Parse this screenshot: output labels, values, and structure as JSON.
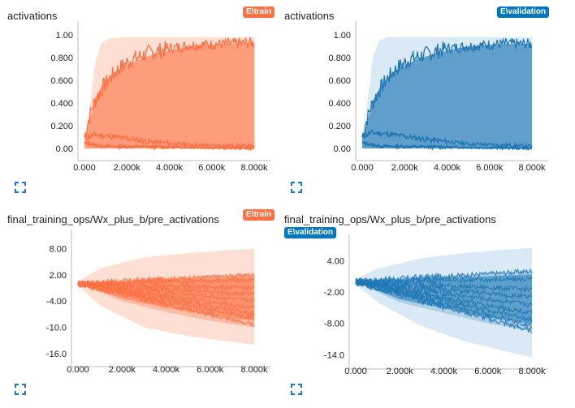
{
  "colors": {
    "train": "#ff7043",
    "validation": "#1f77b4",
    "train_light": "#ffd7c8",
    "validation_light": "#cfe4f3",
    "validation_mid": "#a9cde6",
    "train_mid": "#ffb89f",
    "axis": "#bdbdbd"
  },
  "icons": {
    "expand": "fullscreen-expand-icon"
  },
  "charts": [
    {
      "title": "activations",
      "run": "E\\train",
      "chart_data": {
        "type": "area",
        "run": "E\\train",
        "x_ticks": [
          "0.000",
          "2.000k",
          "4.000k",
          "6.000k",
          "8.000k"
        ],
        "y_ticks": [
          "1.00",
          "0.800",
          "0.600",
          "0.400",
          "0.200",
          "0.00"
        ],
        "xlim": [
          0,
          8000
        ],
        "ylim": [
          -0.05,
          1.05
        ],
        "envelope_max": [
          [
            0,
            0.12
          ],
          [
            250,
            0.35
          ],
          [
            500,
            0.75
          ],
          [
            800,
            0.93
          ],
          [
            1200,
            0.97
          ],
          [
            2000,
            0.98
          ],
          [
            4000,
            0.98
          ],
          [
            8000,
            0.98
          ]
        ],
        "envelope_min": [
          [
            0,
            0.0
          ],
          [
            8000,
            0.0
          ]
        ],
        "band_upper": [
          [
            0,
            0.1
          ],
          [
            200,
            0.2
          ],
          [
            500,
            0.45
          ],
          [
            900,
            0.58
          ],
          [
            1500,
            0.68
          ],
          [
            2500,
            0.78
          ],
          [
            3500,
            0.84
          ],
          [
            5000,
            0.9
          ],
          [
            6500,
            0.92
          ],
          [
            8000,
            0.93
          ]
        ],
        "series_upper": [
          [
            0,
            0.1
          ],
          [
            200,
            0.25
          ],
          [
            400,
            0.38
          ],
          [
            600,
            0.45
          ],
          [
            900,
            0.55
          ],
          [
            1200,
            0.62
          ],
          [
            1600,
            0.7
          ],
          [
            2200,
            0.78
          ],
          [
            3000,
            0.84
          ],
          [
            4000,
            0.88
          ],
          [
            5000,
            0.91
          ],
          [
            6500,
            0.92
          ],
          [
            8000,
            0.93
          ]
        ],
        "series_lower": [
          [
            0,
            0.09
          ],
          [
            500,
            0.12
          ],
          [
            1500,
            0.1
          ],
          [
            3000,
            0.06
          ],
          [
            5000,
            0.03
          ],
          [
            8000,
            0.02
          ]
        ],
        "series_bottom": [
          [
            0,
            0.05
          ],
          [
            800,
            0.02
          ],
          [
            8000,
            0.0
          ]
        ]
      }
    },
    {
      "title": "activations",
      "run": "E\\validation",
      "chart_data": {
        "type": "area",
        "run": "E\\validation",
        "x_ticks": [
          "0.000",
          "2.000k",
          "4.000k",
          "6.000k",
          "8.000k"
        ],
        "y_ticks": [
          "1.00",
          "0.800",
          "0.600",
          "0.400",
          "0.200",
          "0.00"
        ],
        "xlim": [
          0,
          8000
        ],
        "ylim": [
          -0.05,
          1.05
        ],
        "envelope_max": [
          [
            0,
            0.12
          ],
          [
            250,
            0.4
          ],
          [
            500,
            0.8
          ],
          [
            800,
            0.95
          ],
          [
            1200,
            0.98
          ],
          [
            8000,
            0.98
          ]
        ],
        "envelope_min": [
          [
            0,
            0.0
          ],
          [
            8000,
            0.0
          ]
        ],
        "band_upper": [
          [
            0,
            0.1
          ],
          [
            200,
            0.2
          ],
          [
            500,
            0.42
          ],
          [
            900,
            0.56
          ],
          [
            1500,
            0.68
          ],
          [
            2500,
            0.78
          ],
          [
            3500,
            0.84
          ],
          [
            5000,
            0.9
          ],
          [
            6500,
            0.92
          ],
          [
            8000,
            0.92
          ]
        ],
        "series_upper": [
          [
            0,
            0.1
          ],
          [
            200,
            0.24
          ],
          [
            400,
            0.36
          ],
          [
            600,
            0.44
          ],
          [
            900,
            0.54
          ],
          [
            1200,
            0.62
          ],
          [
            1600,
            0.7
          ],
          [
            2200,
            0.78
          ],
          [
            3000,
            0.83
          ],
          [
            4000,
            0.88
          ],
          [
            5000,
            0.9
          ],
          [
            6500,
            0.92
          ],
          [
            8000,
            0.92
          ]
        ],
        "series_lower": [
          [
            0,
            0.1
          ],
          [
            400,
            0.14
          ],
          [
            1500,
            0.12
          ],
          [
            3000,
            0.08
          ],
          [
            5000,
            0.04
          ],
          [
            8000,
            0.02
          ]
        ],
        "series_bottom": [
          [
            0,
            0.05
          ],
          [
            800,
            0.02
          ],
          [
            8000,
            0.0
          ]
        ]
      }
    },
    {
      "title": "final_training_ops/Wx_plus_b/pre_activations",
      "run": "E\\train",
      "chart_data": {
        "type": "area",
        "run": "E\\train",
        "x_ticks": [
          "0.000",
          "2.000k",
          "4.000k",
          "6.000k",
          "8.000k"
        ],
        "y_ticks": [
          "8.00",
          "2.00",
          "-4.00",
          "-10.0",
          "-16.0"
        ],
        "xlim": [
          0,
          8000
        ],
        "ylim": [
          -17.5,
          10.5
        ],
        "envelope_max": [
          [
            0,
            0.5
          ],
          [
            1000,
            3.5
          ],
          [
            3000,
            6.0
          ],
          [
            5000,
            7.0
          ],
          [
            8000,
            8.0
          ]
        ],
        "envelope_min": [
          [
            0,
            -0.5
          ],
          [
            1000,
            -5.0
          ],
          [
            3000,
            -10.0
          ],
          [
            5000,
            -12.0
          ],
          [
            8000,
            -14.0
          ]
        ],
        "band_upper": [
          [
            0,
            0
          ],
          [
            2000,
            0.8
          ],
          [
            4000,
            1.5
          ],
          [
            6000,
            1.8
          ],
          [
            8000,
            2.2
          ]
        ],
        "band_lower": [
          [
            0,
            0
          ],
          [
            2000,
            -4.0
          ],
          [
            4000,
            -6.5
          ],
          [
            6000,
            -8.5
          ],
          [
            8000,
            -10.0
          ]
        ],
        "lines": [
          [
            [
              0,
              0
            ],
            [
              8000,
              2.0
            ]
          ],
          [
            [
              0,
              0
            ],
            [
              8000,
              0.8
            ]
          ],
          [
            [
              0,
              0
            ],
            [
              8000,
              -1.0
            ]
          ],
          [
            [
              0,
              0
            ],
            [
              8000,
              -2.5
            ]
          ],
          [
            [
              0,
              0
            ],
            [
              8000,
              -4.0
            ]
          ],
          [
            [
              0,
              0
            ],
            [
              8000,
              -5.5
            ]
          ],
          [
            [
              0,
              0
            ],
            [
              8000,
              -6.8
            ]
          ],
          [
            [
              0,
              0
            ],
            [
              8000,
              -8.0
            ]
          ],
          [
            [
              0,
              0
            ],
            [
              8000,
              -9.5
            ]
          ]
        ]
      }
    },
    {
      "title": "final_training_ops/Wx_plus_b/pre_activations",
      "run": "E\\validation",
      "chart_data": {
        "type": "area",
        "run": "E\\validation",
        "x_ticks": [
          "0.000",
          "2.000k",
          "4.000k",
          "6.000k",
          "8.000k"
        ],
        "y_ticks": [
          "4.00",
          "-2.00",
          "-8.00",
          "-14.0"
        ],
        "xlim": [
          0,
          8000
        ],
        "ylim": [
          -15.5,
          7.5
        ],
        "envelope_max": [
          [
            0,
            0.5
          ],
          [
            1000,
            2.5
          ],
          [
            3000,
            4.5
          ],
          [
            5000,
            5.5
          ],
          [
            8000,
            6.5
          ]
        ],
        "envelope_min": [
          [
            0,
            -0.5
          ],
          [
            1000,
            -4.0
          ],
          [
            3000,
            -8.5
          ],
          [
            5000,
            -11.5
          ],
          [
            8000,
            -14.5
          ]
        ],
        "band_upper": [
          [
            0,
            0
          ],
          [
            2000,
            0.8
          ],
          [
            4000,
            1.2
          ],
          [
            6000,
            1.5
          ],
          [
            8000,
            2.0
          ]
        ],
        "band_lower": [
          [
            0,
            0
          ],
          [
            2000,
            -4.0
          ],
          [
            4000,
            -6.0
          ],
          [
            6000,
            -8.0
          ],
          [
            8000,
            -9.5
          ]
        ],
        "lines": [
          [
            [
              0,
              0
            ],
            [
              8000,
              2.0
            ]
          ],
          [
            [
              0,
              0
            ],
            [
              8000,
              0.5
            ]
          ],
          [
            [
              0,
              0
            ],
            [
              8000,
              -1.5
            ]
          ],
          [
            [
              0,
              0
            ],
            [
              8000,
              -3.0
            ]
          ],
          [
            [
              0,
              0
            ],
            [
              8000,
              -4.5
            ]
          ],
          [
            [
              0,
              0
            ],
            [
              8000,
              -6.0
            ]
          ],
          [
            [
              0,
              0
            ],
            [
              8000,
              -7.2
            ]
          ],
          [
            [
              0,
              0
            ],
            [
              8000,
              -8.5
            ]
          ],
          [
            [
              0,
              0
            ],
            [
              8000,
              -9.5
            ]
          ]
        ]
      }
    }
  ]
}
